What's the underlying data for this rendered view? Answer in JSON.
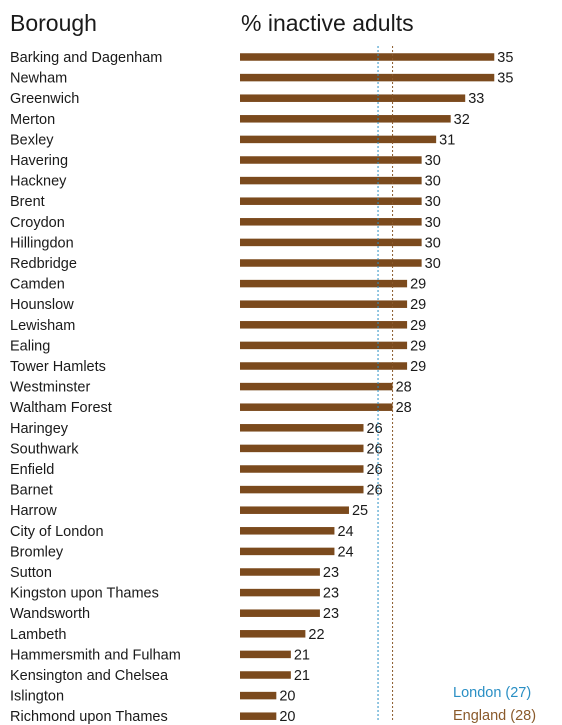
{
  "chart_data": {
    "type": "bar",
    "orientation": "horizontal",
    "column_headers": {
      "category": "Borough",
      "value": "% inactive adults"
    },
    "categories": [
      "Barking and Dagenham",
      "Newham",
      "Greenwich",
      "Merton",
      "Bexley",
      "Havering",
      "Hackney",
      "Brent",
      "Croydon",
      "Hillingdon",
      "Redbridge",
      "Camden",
      "Hounslow",
      "Lewisham",
      "Ealing",
      "Tower Hamlets",
      "Westminster",
      "Waltham Forest",
      "Haringey",
      "Southwark",
      "Enfield",
      "Barnet",
      "Harrow",
      "City of London",
      "Bromley",
      "Sutton",
      "Kingston upon Thames",
      "Wandsworth",
      "Lambeth",
      "Hammersmith and Fulham",
      "Kensington and Chelsea",
      "Islington",
      "Richmond upon Thames"
    ],
    "values": [
      35,
      35,
      33,
      32,
      31,
      30,
      30,
      30,
      30,
      30,
      30,
      29,
      29,
      29,
      29,
      29,
      28,
      28,
      26,
      26,
      26,
      26,
      25,
      24,
      24,
      23,
      23,
      23,
      22,
      21,
      21,
      20,
      20
    ],
    "value_labels": [
      "35",
      "35",
      "33",
      "32",
      "31",
      "30",
      "30",
      "30",
      "30",
      "30",
      "30",
      "29",
      "29",
      "29",
      "29",
      "29",
      "28",
      "28",
      "26",
      "26",
      "26",
      "26",
      "25",
      "24",
      "24",
      "23",
      "23",
      "23",
      "22",
      "21",
      "21",
      "20",
      "20"
    ],
    "bar_color": "#7b4a1d",
    "reference_lines": [
      {
        "label": "London (27)",
        "value": 27,
        "color": "#2a8fc4"
      },
      {
        "label": "England (28)",
        "value": 28,
        "color": "#8a5a2b"
      }
    ],
    "xlim": [
      0,
      36
    ],
    "grid": false,
    "legend": "none"
  }
}
